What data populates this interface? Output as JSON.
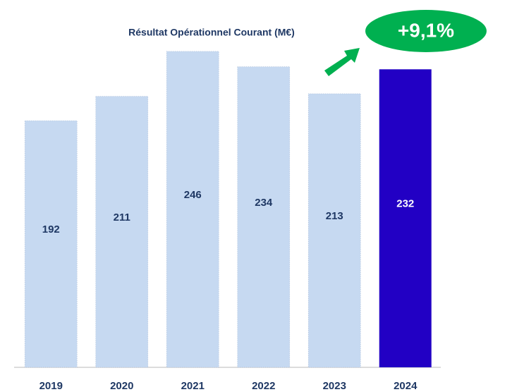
{
  "chart_data": {
    "type": "bar",
    "title": "Résultat Opérationnel Courant (M€)",
    "categories": [
      "2019",
      "2020",
      "2021",
      "2022",
      "2023",
      "2024"
    ],
    "values": [
      192,
      211,
      246,
      234,
      213,
      232
    ],
    "colors": [
      "#c6d9f1",
      "#c6d9f1",
      "#c6d9f1",
      "#c6d9f1",
      "#c6d9f1",
      "#2200c4"
    ],
    "ylim": [
      0,
      264
    ],
    "annotation": "+9,1%"
  }
}
